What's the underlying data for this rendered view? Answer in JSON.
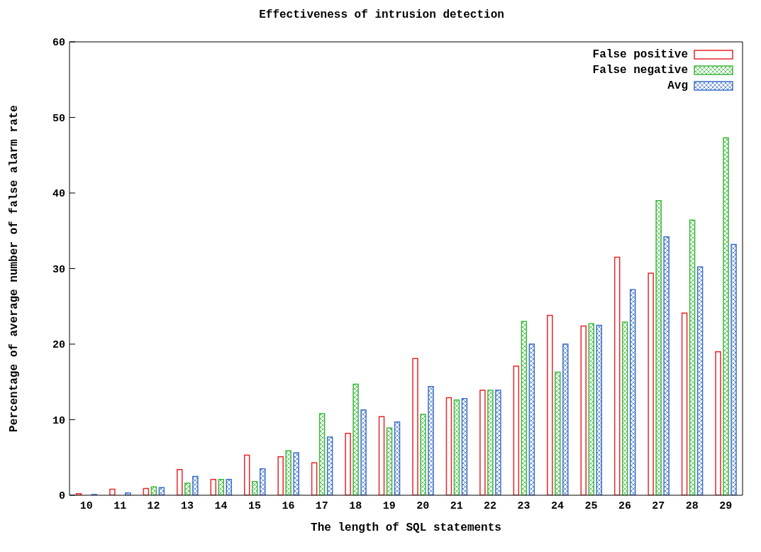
{
  "chart_data": {
    "type": "bar",
    "title": "Effectiveness of intrusion detection",
    "xlabel": "The length of SQL statements",
    "ylabel": "Percentage of average number of false alarm rate",
    "categories": [
      "10",
      "11",
      "12",
      "13",
      "14",
      "15",
      "16",
      "17",
      "18",
      "19",
      "20",
      "21",
      "22",
      "23",
      "24",
      "25",
      "26",
      "27",
      "28",
      "29"
    ],
    "series": [
      {
        "name": "False positive",
        "color": "#e8262b",
        "values": [
          0.2,
          0.8,
          0.9,
          3.4,
          2.1,
          5.3,
          5.1,
          4.3,
          8.2,
          10.4,
          18.1,
          12.9,
          13.9,
          17.1,
          23.8,
          22.4,
          31.5,
          29.4,
          24.1,
          19.0
        ]
      },
      {
        "name": "False negative",
        "color": "#3cb83c",
        "values": [
          0,
          0,
          1.1,
          1.6,
          2.1,
          1.8,
          5.9,
          10.8,
          14.7,
          8.9,
          10.7,
          12.6,
          13.9,
          23.0,
          16.3,
          22.7,
          22.9,
          39.0,
          36.4,
          47.3
        ]
      },
      {
        "name": "Avg",
        "color": "#3c6fc8",
        "values": [
          0.1,
          0.3,
          1.0,
          2.5,
          2.1,
          3.5,
          5.6,
          7.7,
          11.3,
          9.7,
          14.4,
          12.8,
          13.9,
          20.0,
          20.0,
          22.5,
          27.2,
          34.2,
          30.2,
          33.2
        ]
      }
    ],
    "ylim": [
      0,
      60
    ],
    "yticks": [
      0,
      10,
      20,
      30,
      40,
      50,
      60
    ],
    "legend": "top right"
  }
}
